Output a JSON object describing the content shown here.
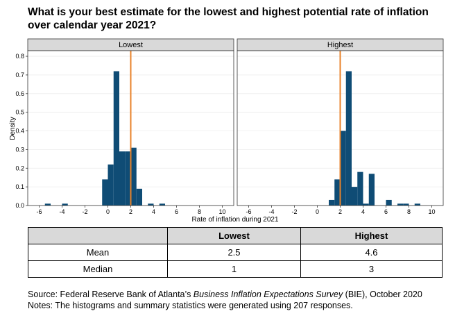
{
  "title": "What is your best estimate for the lowest and highest potential rate of inflation over calendar year 2021?",
  "chart_data": {
    "type": "bar",
    "xlabel": "Rate of inflation during 2021",
    "ylabel": "Density",
    "xlim": [
      -7,
      11
    ],
    "ylim": [
      0,
      0.83
    ],
    "x_ticks": [
      -6,
      -4,
      -2,
      0,
      2,
      4,
      6,
      8,
      10
    ],
    "y_ticks": [
      0.0,
      0.1,
      0.2,
      0.3,
      0.4,
      0.5,
      0.6,
      0.7,
      0.8
    ],
    "bar_color": "#0f4c75",
    "reference_line": {
      "x": 2,
      "color": "#e8822a"
    },
    "panels": [
      {
        "name": "Lowest",
        "bins": [
          {
            "x0": -5.5,
            "x1": -5.0,
            "y": 0.01
          },
          {
            "x0": -4.0,
            "x1": -3.5,
            "y": 0.01
          },
          {
            "x0": -0.5,
            "x1": 0.0,
            "y": 0.14
          },
          {
            "x0": 0.0,
            "x1": 0.5,
            "y": 0.22
          },
          {
            "x0": 0.5,
            "x1": 1.0,
            "y": 0.72
          },
          {
            "x0": 1.0,
            "x1": 1.5,
            "y": 0.29
          },
          {
            "x0": 1.5,
            "x1": 2.0,
            "y": 0.29
          },
          {
            "x0": 2.0,
            "x1": 2.5,
            "y": 0.31
          },
          {
            "x0": 2.5,
            "x1": 3.0,
            "y": 0.09
          },
          {
            "x0": 3.5,
            "x1": 4.0,
            "y": 0.01
          },
          {
            "x0": 4.5,
            "x1": 5.0,
            "y": 0.01
          }
        ]
      },
      {
        "name": "Highest",
        "bins": [
          {
            "x0": 1.0,
            "x1": 1.5,
            "y": 0.03
          },
          {
            "x0": 1.5,
            "x1": 2.0,
            "y": 0.14
          },
          {
            "x0": 2.0,
            "x1": 2.5,
            "y": 0.4
          },
          {
            "x0": 2.5,
            "x1": 3.0,
            "y": 0.72
          },
          {
            "x0": 3.0,
            "x1": 3.5,
            "y": 0.1
          },
          {
            "x0": 3.5,
            "x1": 4.0,
            "y": 0.18
          },
          {
            "x0": 4.0,
            "x1": 4.5,
            "y": 0.01
          },
          {
            "x0": 4.5,
            "x1": 5.0,
            "y": 0.17
          },
          {
            "x0": 6.0,
            "x1": 6.5,
            "y": 0.03
          },
          {
            "x0": 7.0,
            "x1": 7.5,
            "y": 0.01
          },
          {
            "x0": 7.5,
            "x1": 8.0,
            "y": 0.01
          },
          {
            "x0": 8.5,
            "x1": 9.0,
            "y": 0.01
          }
        ]
      }
    ]
  },
  "table": {
    "headers": [
      "",
      "Lowest",
      "Highest"
    ],
    "rows": [
      {
        "label": "Mean",
        "lowest": "2.5",
        "highest": "4.6"
      },
      {
        "label": "Median",
        "lowest": "1",
        "highest": "3"
      }
    ]
  },
  "footer": {
    "source_prefix": "Source: Federal Reserve Bank of Atlanta’s ",
    "source_italic": "Business Inflation Expectations Survey",
    "source_suffix": " (BIE), October 2020",
    "notes": "Notes: The histograms and summary statistics were generated using 207 responses."
  }
}
